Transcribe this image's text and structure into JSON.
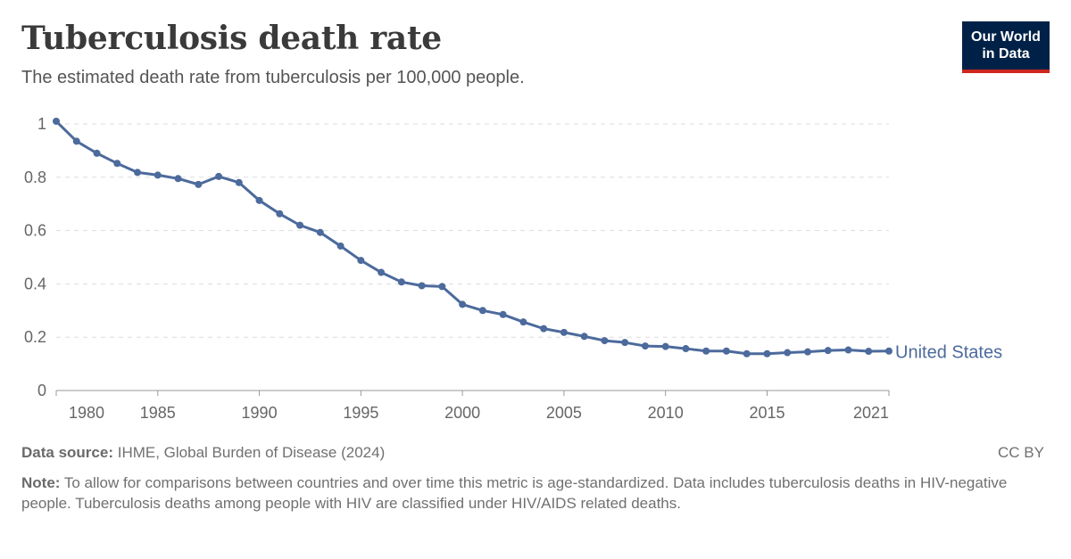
{
  "header": {
    "title": "Tuberculosis death rate",
    "subtitle": "The estimated death rate from tuberculosis per 100,000 people.",
    "logo_line1": "Our World",
    "logo_line2": "in Data"
  },
  "footer": {
    "source_label": "Data source:",
    "source_text": "IHME, Global Burden of Disease (2024)",
    "license": "CC BY",
    "note_label": "Note:",
    "note_text": "To allow for comparisons between countries and over time this metric is age-standardized. Data includes tuberculosis deaths in HIV-negative people. Tuberculosis deaths among people with HIV are classified under HIV/AIDS related deaths."
  },
  "colors": {
    "series": "#4c6a9c",
    "grid": "#dddddd",
    "axis": "#999999"
  },
  "chart_data": {
    "type": "line",
    "title": "Tuberculosis death rate",
    "xlabel": "",
    "ylabel": "",
    "xlim": [
      1980,
      2021
    ],
    "ylim": [
      0,
      1
    ],
    "grid": true,
    "x_ticks": [
      1980,
      1985,
      1990,
      1995,
      2000,
      2005,
      2010,
      2015,
      2021
    ],
    "y_ticks": [
      0,
      0.2,
      0.4,
      0.6,
      0.8,
      1
    ],
    "y_tick_labels": [
      "0",
      "0.2",
      "0.4",
      "0.6",
      "0.8",
      "1"
    ],
    "x": [
      1980,
      1981,
      1982,
      1983,
      1984,
      1985,
      1986,
      1987,
      1988,
      1989,
      1990,
      1991,
      1992,
      1993,
      1994,
      1995,
      1996,
      1997,
      1998,
      1999,
      2000,
      2001,
      2002,
      2003,
      2004,
      2005,
      2006,
      2007,
      2008,
      2009,
      2010,
      2011,
      2012,
      2013,
      2014,
      2015,
      2016,
      2017,
      2018,
      2019,
      2020,
      2021
    ],
    "series": [
      {
        "name": "United States",
        "values": [
          1.01,
          0.935,
          0.89,
          0.852,
          0.818,
          0.808,
          0.795,
          0.773,
          0.803,
          0.78,
          0.713,
          0.663,
          0.62,
          0.593,
          0.542,
          0.488,
          0.443,
          0.407,
          0.393,
          0.39,
          0.323,
          0.3,
          0.285,
          0.257,
          0.232,
          0.218,
          0.203,
          0.187,
          0.18,
          0.167,
          0.165,
          0.157,
          0.148,
          0.148,
          0.138,
          0.138,
          0.142,
          0.145,
          0.15,
          0.152,
          0.147,
          0.148
        ]
      }
    ]
  }
}
